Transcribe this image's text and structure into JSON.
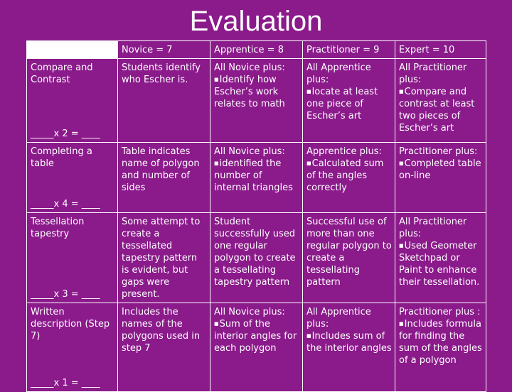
{
  "title": "Evaluation",
  "columns": [
    "",
    "Novice = 7",
    "Apprentice = 8",
    "Practitioner = 9",
    "Expert = 10"
  ],
  "rows": [
    {
      "criterion": "Compare and Contrast",
      "multiplier": "_____x 2 = ____",
      "cells": [
        {
          "lead": "Students identify who Escher is.",
          "items": []
        },
        {
          "lead": "All Novice plus:",
          "items": [
            "Identify how Escher’s work relates to math"
          ]
        },
        {
          "lead": "All Apprentice plus:",
          "items": [
            "locate at least one piece of Escher’s art"
          ]
        },
        {
          "lead": "All Practitioner plus:",
          "items": [
            "Compare and contrast at least two pieces of Escher’s art"
          ]
        }
      ]
    },
    {
      "criterion": "Completing a table",
      "multiplier": "_____x 4 = ____",
      "cells": [
        {
          "lead": "Table indicates name of polygon and number of sides",
          "items": []
        },
        {
          "lead": "All Novice plus:",
          "items": [
            "identified the number of internal triangles"
          ]
        },
        {
          "lead": "Apprentice plus:",
          "items": [
            "Calculated sum of the angles correctly"
          ]
        },
        {
          "lead": "Practitioner plus:",
          "items": [
            "Completed table on-line"
          ]
        }
      ]
    },
    {
      "criterion": "Tessellation tapestry",
      "multiplier": "_____x 3 = ____",
      "cells": [
        {
          "lead": "Some attempt to create a tessellated tapestry pattern is evident, but gaps were present.",
          "items": []
        },
        {
          "lead": "Student successfully used one regular polygon to create a tessellating tapestry pattern",
          "items": []
        },
        {
          "lead": "Successful use of more than one regular polygon to create a tessellating pattern",
          "items": []
        },
        {
          "lead": "All Practitioner plus:",
          "items": [
            "Used Geometer Sketchpad or Paint to enhance their tessellation."
          ]
        }
      ]
    },
    {
      "criterion": "Written description (Step 7)",
      "multiplier": "_____x 1 = ____",
      "cells": [
        {
          "lead": "Includes the names of the polygons used in step 7",
          "items": []
        },
        {
          "lead": "All Novice plus:",
          "items": [
            "Sum of the interior angles for each polygon"
          ]
        },
        {
          "lead": "All Apprentice plus:",
          "items": [
            "Includes sum of the interior angles"
          ]
        },
        {
          "lead": "Practitioner plus :",
          "items": [
            "Includes formula for finding the sum of the angles of a polygon"
          ]
        }
      ]
    }
  ]
}
